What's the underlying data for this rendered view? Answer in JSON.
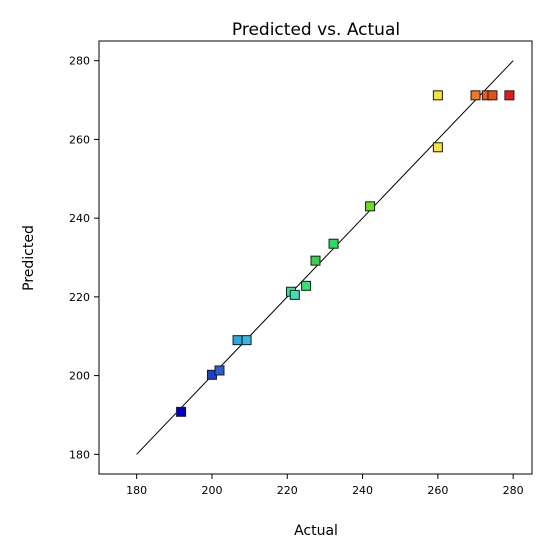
{
  "chart_data": {
    "type": "scatter",
    "title": "Predicted vs. Actual",
    "xlabel": "Actual",
    "ylabel": "Predicted",
    "xlim": [
      170,
      285
    ],
    "ylim": [
      175,
      285
    ],
    "xticks": [
      180,
      200,
      220,
      240,
      260,
      280
    ],
    "yticks": [
      180,
      200,
      220,
      240,
      260,
      280
    ],
    "reference_line": {
      "from": [
        180,
        180
      ],
      "to": [
        280,
        280
      ]
    },
    "points": [
      {
        "x": 191.8,
        "y": 190.8,
        "color": "#0000cc"
      },
      {
        "x": 200.0,
        "y": 200.2,
        "color": "#1a3fd6"
      },
      {
        "x": 202.0,
        "y": 201.3,
        "color": "#2a5fd0"
      },
      {
        "x": 206.8,
        "y": 209.0,
        "color": "#2ea8e0"
      },
      {
        "x": 209.2,
        "y": 209.0,
        "color": "#3ab6e0"
      },
      {
        "x": 221.0,
        "y": 221.3,
        "color": "#33e0a0"
      },
      {
        "x": 222.0,
        "y": 220.5,
        "color": "#3de0b0"
      },
      {
        "x": 225.0,
        "y": 222.8,
        "color": "#33e07a"
      },
      {
        "x": 227.5,
        "y": 229.2,
        "color": "#3ad050"
      },
      {
        "x": 232.3,
        "y": 233.5,
        "color": "#22e060"
      },
      {
        "x": 242.0,
        "y": 243.0,
        "color": "#66e020"
      },
      {
        "x": 260.0,
        "y": 258.0,
        "color": "#f5e23a"
      },
      {
        "x": 260.0,
        "y": 271.2,
        "color": "#f5e23a"
      },
      {
        "x": 270.0,
        "y": 271.2,
        "color": "#f07820"
      },
      {
        "x": 273.0,
        "y": 271.2,
        "color": "#f05a1e"
      },
      {
        "x": 274.5,
        "y": 271.2,
        "color": "#e8501a"
      },
      {
        "x": 279.0,
        "y": 271.2,
        "color": "#e41a1c"
      }
    ]
  }
}
